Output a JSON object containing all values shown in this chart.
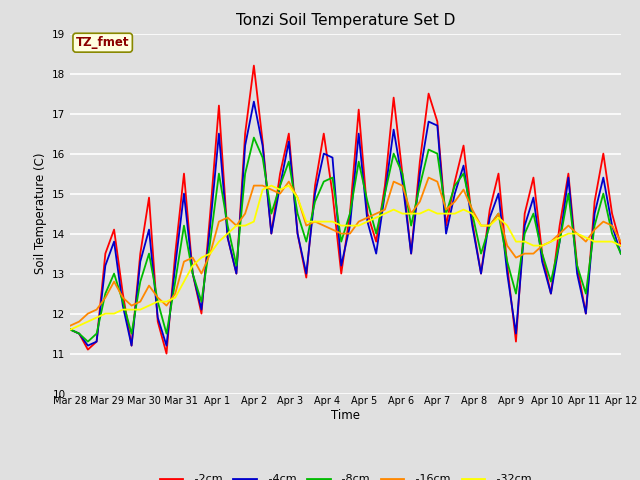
{
  "title": "Tonzi Soil Temperature Set D",
  "xlabel": "Time",
  "ylabel": "Soil Temperature (C)",
  "ylim": [
    10.0,
    19.0
  ],
  "yticks": [
    10.0,
    11.0,
    12.0,
    13.0,
    14.0,
    15.0,
    16.0,
    17.0,
    18.0,
    19.0
  ],
  "background_color": "#e0e0e0",
  "plot_bg_color": "#e0e0e0",
  "grid_color": "#ffffff",
  "series_colors": {
    "-2cm": "#ff0000",
    "-4cm": "#0000cc",
    "-8cm": "#00bb00",
    "-16cm": "#ff8800",
    "-32cm": "#ffff00"
  },
  "legend_label": "TZ_fmet",
  "x_tick_labels": [
    "Mar 28",
    "Mar 29",
    "Mar 30",
    "Mar 31",
    "Apr 1",
    "Apr 2",
    "Apr 3",
    "Apr 4",
    "Apr 5",
    "Apr 6",
    "Apr 7",
    "Apr 8",
    "Apr 9",
    "Apr 10",
    "Apr 11",
    "Apr 12"
  ],
  "n_days": 16,
  "points_per_day": 4,
  "series": {
    "-2cm": [
      11.6,
      11.5,
      11.1,
      11.3,
      13.5,
      14.1,
      12.5,
      11.2,
      13.5,
      14.9,
      11.8,
      11.0,
      13.5,
      15.5,
      13.0,
      12.0,
      14.5,
      17.2,
      13.9,
      13.0,
      16.5,
      18.2,
      16.3,
      14.0,
      15.5,
      16.5,
      14.0,
      12.9,
      15.2,
      16.5,
      15.0,
      13.0,
      14.5,
      17.1,
      14.5,
      13.8,
      15.2,
      17.4,
      15.5,
      13.5,
      15.8,
      17.5,
      16.8,
      14.2,
      15.3,
      16.2,
      14.3,
      13.0,
      14.6,
      15.5,
      13.2,
      11.3,
      14.5,
      15.4,
      13.5,
      12.5,
      14.2,
      15.5,
      13.2,
      12.0,
      14.8,
      16.0,
      14.5,
      13.7
    ],
    "-4cm": [
      11.6,
      11.5,
      11.2,
      11.3,
      13.2,
      13.8,
      12.2,
      11.2,
      13.3,
      14.1,
      11.9,
      11.2,
      13.2,
      15.0,
      13.0,
      12.1,
      14.2,
      16.5,
      13.9,
      13.0,
      16.2,
      17.3,
      16.2,
      14.0,
      15.2,
      16.3,
      14.0,
      13.0,
      15.0,
      16.0,
      15.9,
      13.2,
      14.2,
      16.5,
      14.3,
      13.5,
      15.0,
      16.6,
      15.3,
      13.5,
      15.5,
      16.8,
      16.7,
      14.0,
      15.0,
      15.7,
      14.2,
      13.0,
      14.4,
      15.0,
      13.0,
      11.5,
      14.2,
      14.9,
      13.3,
      12.5,
      13.8,
      15.4,
      13.0,
      12.0,
      14.5,
      15.4,
      14.2,
      13.5
    ],
    "-8cm": [
      11.6,
      11.5,
      11.3,
      11.5,
      12.5,
      13.0,
      12.3,
      11.5,
      12.8,
      13.5,
      12.3,
      11.5,
      12.8,
      14.2,
      13.0,
      12.3,
      13.8,
      15.5,
      14.2,
      13.2,
      15.5,
      16.4,
      15.9,
      14.5,
      15.2,
      15.8,
      14.5,
      13.8,
      14.8,
      15.3,
      15.4,
      13.8,
      14.5,
      15.8,
      14.8,
      14.0,
      15.0,
      16.0,
      15.5,
      14.2,
      15.2,
      16.1,
      16.0,
      14.5,
      15.2,
      15.5,
      14.5,
      13.5,
      14.2,
      14.5,
      13.3,
      12.5,
      14.0,
      14.5,
      13.5,
      12.8,
      13.8,
      15.0,
      13.2,
      12.5,
      14.2,
      15.0,
      14.0,
      13.5
    ],
    "-16cm": [
      11.7,
      11.8,
      12.0,
      12.1,
      12.4,
      12.8,
      12.4,
      12.2,
      12.3,
      12.7,
      12.4,
      12.2,
      12.5,
      13.3,
      13.4,
      13.0,
      13.5,
      14.3,
      14.4,
      14.2,
      14.5,
      15.2,
      15.2,
      15.1,
      15.0,
      15.3,
      14.9,
      14.2,
      14.3,
      14.2,
      14.1,
      14.0,
      14.0,
      14.3,
      14.4,
      14.5,
      14.6,
      15.3,
      15.2,
      14.5,
      14.8,
      15.4,
      15.3,
      14.6,
      14.8,
      15.1,
      14.6,
      14.2,
      14.2,
      14.5,
      13.7,
      13.4,
      13.5,
      13.5,
      13.7,
      13.8,
      14.0,
      14.2,
      14.0,
      13.8,
      14.1,
      14.3,
      14.2,
      13.8
    ],
    "-32cm": [
      11.6,
      11.7,
      11.8,
      11.9,
      12.0,
      12.0,
      12.1,
      12.1,
      12.1,
      12.2,
      12.3,
      12.3,
      12.4,
      12.8,
      13.2,
      13.4,
      13.5,
      13.8,
      14.0,
      14.2,
      14.2,
      14.3,
      15.1,
      15.2,
      15.1,
      15.2,
      14.9,
      14.3,
      14.3,
      14.3,
      14.3,
      14.2,
      14.2,
      14.2,
      14.3,
      14.4,
      14.5,
      14.6,
      14.5,
      14.5,
      14.5,
      14.6,
      14.5,
      14.5,
      14.5,
      14.6,
      14.5,
      14.2,
      14.2,
      14.4,
      14.2,
      13.8,
      13.8,
      13.7,
      13.7,
      13.8,
      13.9,
      14.0,
      14.0,
      13.9,
      13.8,
      13.8,
      13.8,
      13.7
    ]
  }
}
